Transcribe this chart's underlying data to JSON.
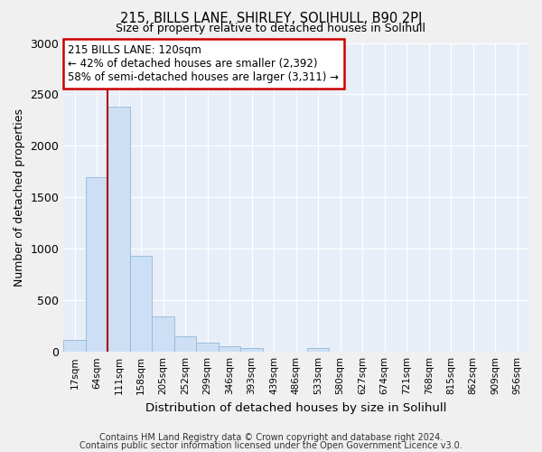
{
  "title": "215, BILLS LANE, SHIRLEY, SOLIHULL, B90 2PJ",
  "subtitle": "Size of property relative to detached houses in Solihull",
  "xlabel": "Distribution of detached houses by size in Solihull",
  "ylabel": "Number of detached properties",
  "bar_color": "#ccdff5",
  "bar_edge_color": "#92b8d8",
  "background_color": "#e8eef8",
  "grid_color": "#ffffff",
  "categories": [
    "17sqm",
    "64sqm",
    "111sqm",
    "158sqm",
    "205sqm",
    "252sqm",
    "299sqm",
    "346sqm",
    "393sqm",
    "439sqm",
    "486sqm",
    "533sqm",
    "580sqm",
    "627sqm",
    "674sqm",
    "721sqm",
    "768sqm",
    "815sqm",
    "862sqm",
    "909sqm",
    "956sqm"
  ],
  "values": [
    115,
    1700,
    2380,
    930,
    340,
    155,
    85,
    55,
    40,
    5,
    5,
    35,
    5,
    5,
    0,
    0,
    0,
    0,
    0,
    0,
    0
  ],
  "ylim": [
    0,
    3000
  ],
  "yticks": [
    0,
    500,
    1000,
    1500,
    2000,
    2500,
    3000
  ],
  "property_line_bin": 2,
  "annotation_title": "215 BILLS LANE: 120sqm",
  "annotation_line1": "← 42% of detached houses are smaller (2,392)",
  "annotation_line2": "58% of semi-detached houses are larger (3,311) →",
  "annotation_box_color": "#ffffff",
  "annotation_border_color": "#cc0000",
  "vline_color": "#aa0000",
  "footer_line1": "Contains HM Land Registry data © Crown copyright and database right 2024.",
  "footer_line2": "Contains public sector information licensed under the Open Government Licence v3.0.",
  "fig_bg": "#f0f0f0"
}
